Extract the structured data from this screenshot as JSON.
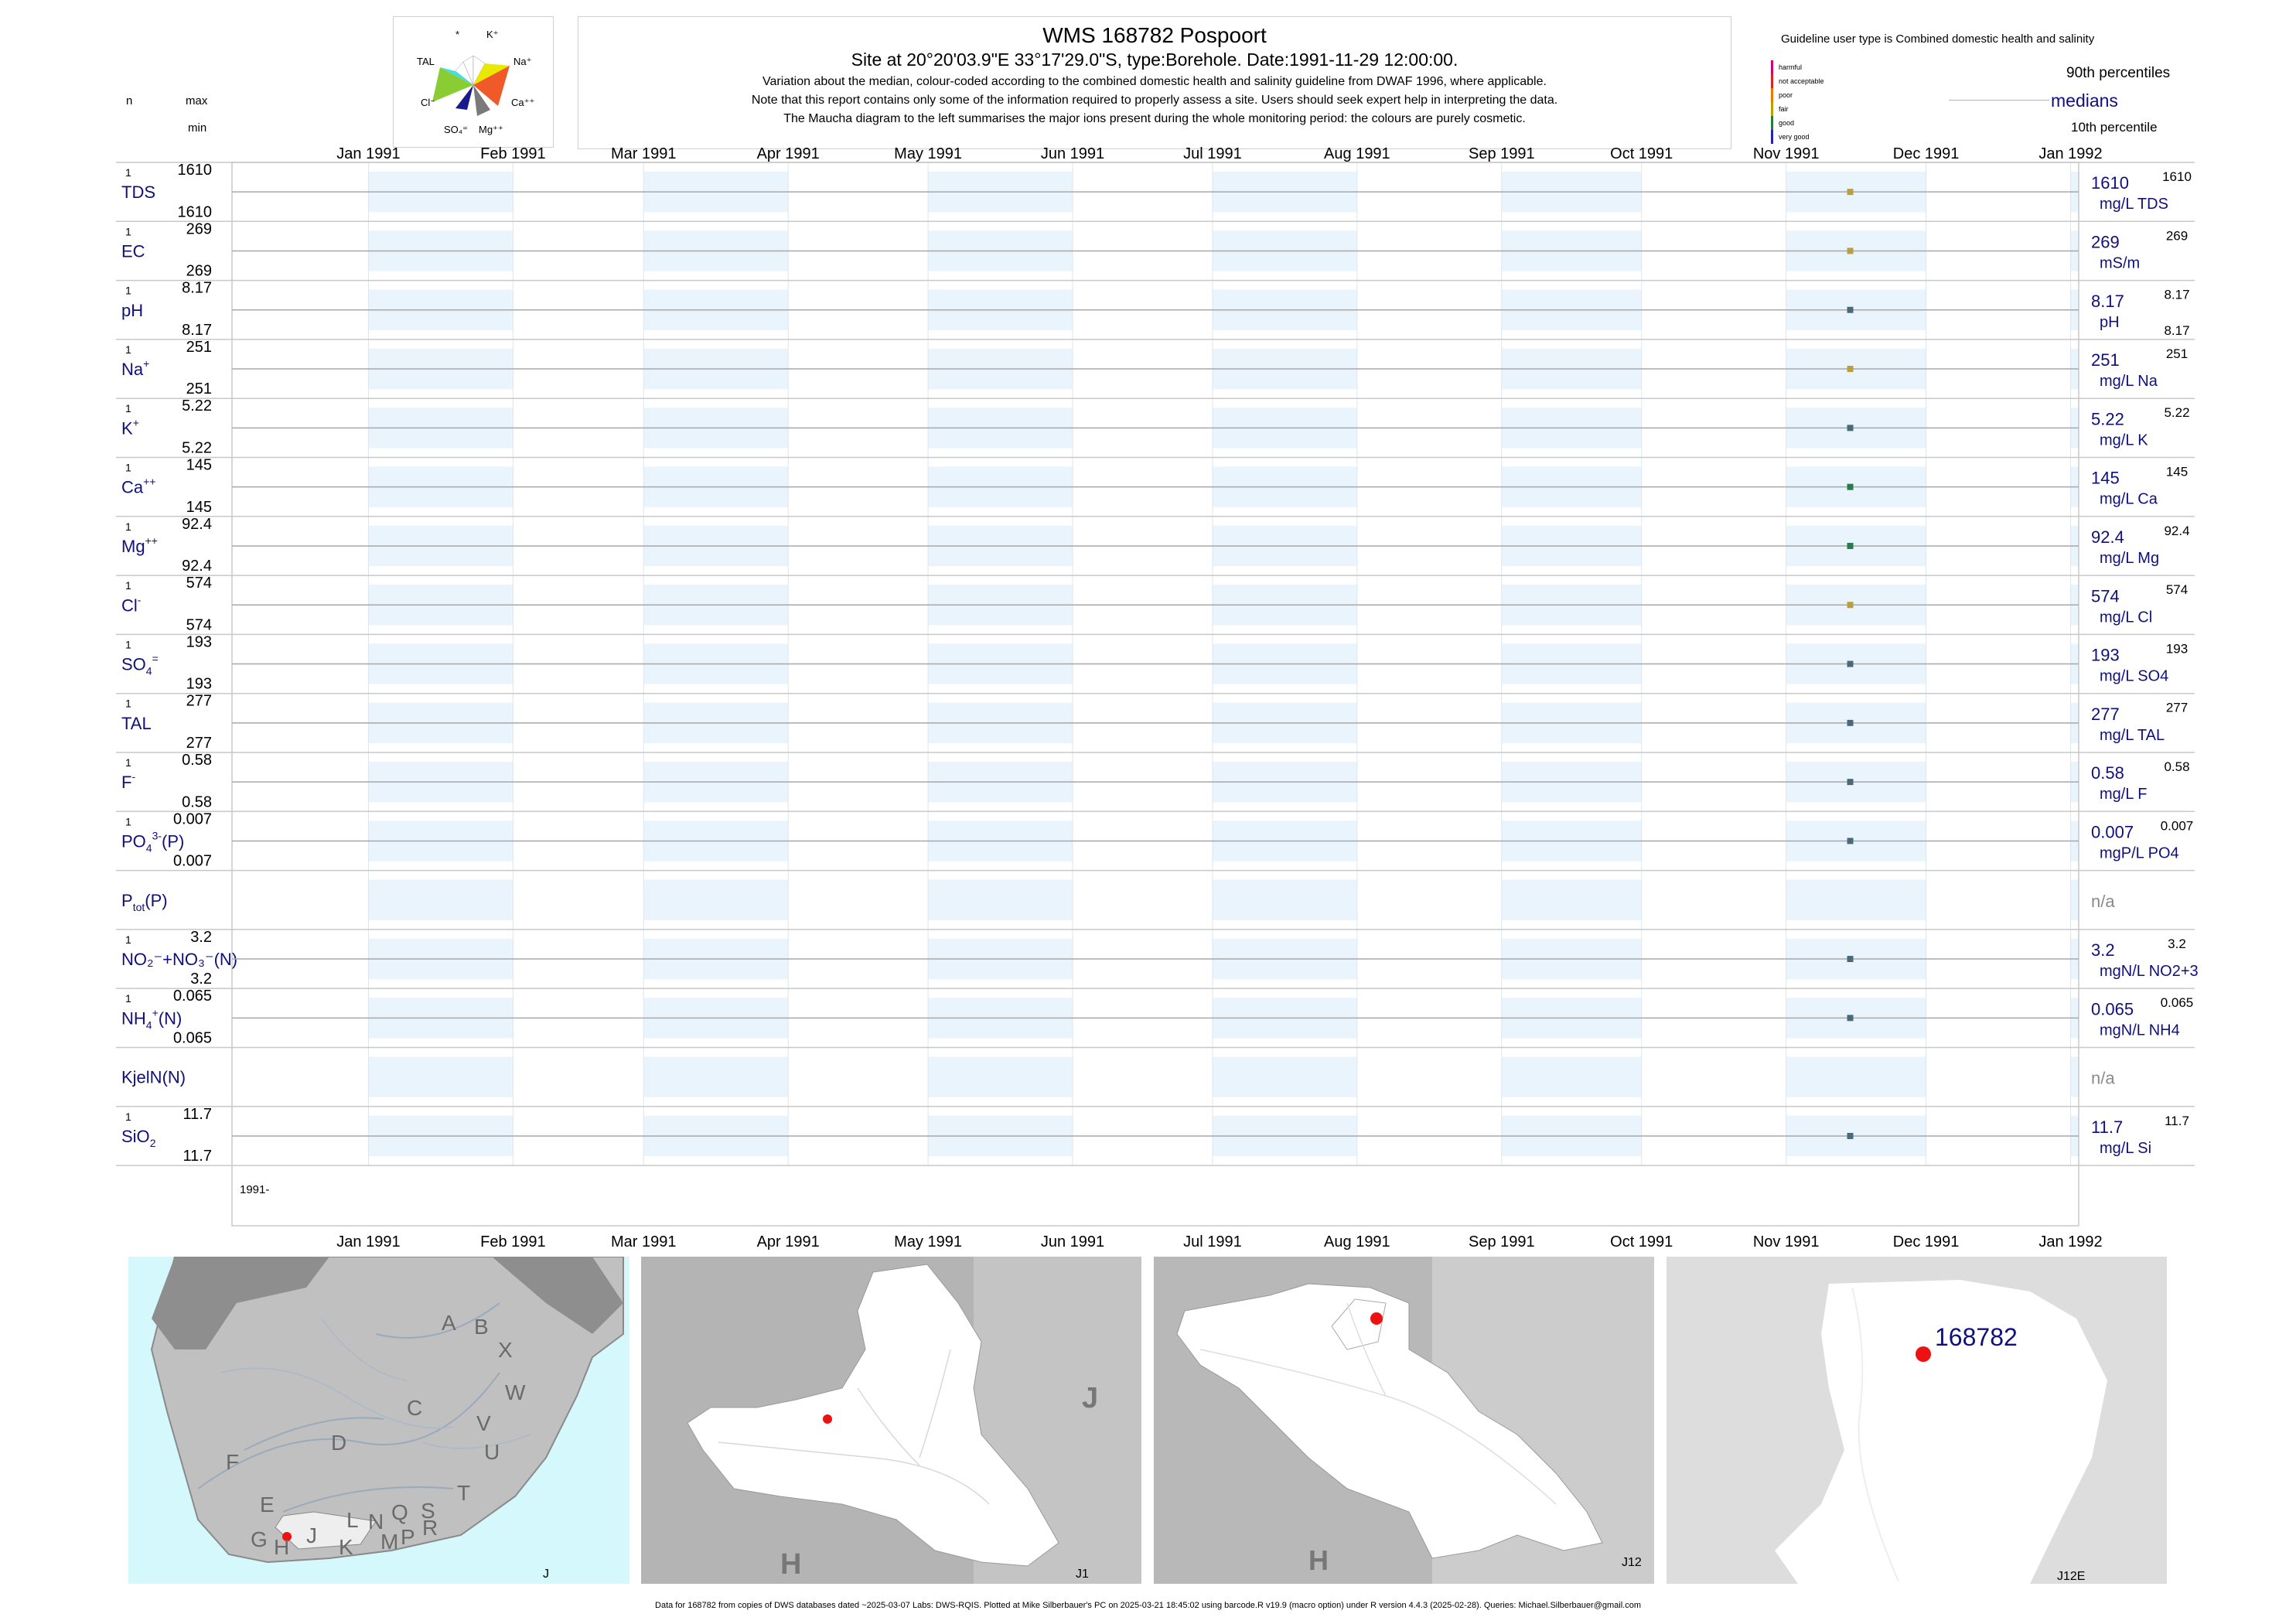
{
  "header": {
    "title": "WMS 168782  Pospoort",
    "subtitle": "Site at 20°20'03.9\"E 33°17'29.0\"S, type:Borehole. Date:1991-11-29 12:00:00.",
    "note1": "Variation about the median,  colour-coded according to the combined domestic health and salinity guideline from DWAF 1996, where applicable.",
    "note2": "Note that this report contains only some of the information required to properly assess a site. Users should seek expert help in interpreting the data.",
    "note3": "The Maucha diagram to the left summarises the major ions present during the whole monitoring period: the colours are purely cosmetic."
  },
  "maucha": {
    "labels": [
      "*",
      "K⁺",
      "Na⁺",
      "TAL",
      "Cl⁻",
      "Ca⁺⁺",
      "SO₄⁼",
      "Mg⁺⁺"
    ],
    "colors": [
      "#3fe0e6",
      "#e8e800",
      "#f05a28",
      "#8acd32",
      "#1a1a8c",
      "#7a7a7a"
    ]
  },
  "col_labels": {
    "n": "n",
    "max": "max",
    "min": "min"
  },
  "legend": {
    "title": "Guideline user type is Combined domestic health and salinity",
    "grades": [
      {
        "label": "harmful",
        "color": "#cc0077"
      },
      {
        "label": "not acceptable",
        "color": "#dd2222"
      },
      {
        "label": "poor",
        "color": "#ee7700"
      },
      {
        "label": "fair",
        "color": "#bba000"
      },
      {
        "label": "good",
        "color": "#2a7a3a"
      },
      {
        "label": "very good",
        "color": "#2222bb"
      }
    ],
    "p90": "90th percentiles",
    "medians": "medians",
    "p10": "10th percentile"
  },
  "chart_data": {
    "type": "scatter",
    "x_ticks": [
      "Jan 1991",
      "Feb 1991",
      "Mar 1991",
      "Apr 1991",
      "May 1991",
      "Jun 1991",
      "Jul 1991",
      "Aug 1991",
      "Sep 1991",
      "Oct 1991",
      "Nov 1991",
      "Dec 1991",
      "Jan 1992"
    ],
    "xlim": [
      "1990-12-17",
      "1992-01-17"
    ],
    "sample_date": "1991-11-29",
    "bottom_year_label": "1991-",
    "params": [
      {
        "name": "TDS",
        "sup": "",
        "sub": "",
        "n": "1",
        "max": "1610",
        "min": "1610",
        "median": "1610",
        "unit": "mg/L TDS",
        "r_max": "1610",
        "r_min": "",
        "color": "#b8a040"
      },
      {
        "name": "EC",
        "sup": "",
        "sub": "",
        "n": "1",
        "max": "269",
        "min": "269",
        "median": "269",
        "unit": "mS/m",
        "r_max": "269",
        "r_min": "",
        "color": "#b8a040"
      },
      {
        "name": "pH",
        "sup": "",
        "sub": "",
        "n": "1",
        "max": "8.17",
        "min": "8.17",
        "median": "8.17",
        "unit": "pH",
        "r_max": "8.17",
        "r_min": "8.17",
        "color": "#4a6a7a"
      },
      {
        "name": "Na",
        "sup": "+",
        "sub": "",
        "n": "1",
        "max": "251",
        "min": "251",
        "median": "251",
        "unit": "mg/L Na",
        "r_max": "251",
        "r_min": "",
        "color": "#b8a040"
      },
      {
        "name": "K",
        "sup": "+",
        "sub": "",
        "n": "1",
        "max": "5.22",
        "min": "5.22",
        "median": "5.22",
        "unit": "mg/L K",
        "r_max": "5.22",
        "r_min": "",
        "color": "#4a6a7a"
      },
      {
        "name": "Ca",
        "sup": "++",
        "sub": "",
        "n": "1",
        "max": "145",
        "min": "145",
        "median": "145",
        "unit": "mg/L Ca",
        "r_max": "145",
        "r_min": "",
        "color": "#2a7a4a"
      },
      {
        "name": "Mg",
        "sup": "++",
        "sub": "",
        "n": "1",
        "max": "92.4",
        "min": "92.4",
        "median": "92.4",
        "unit": "mg/L Mg",
        "r_max": "92.4",
        "r_min": "",
        "color": "#2a7a4a"
      },
      {
        "name": "Cl",
        "sup": "-",
        "sub": "",
        "n": "1",
        "max": "574",
        "min": "574",
        "median": "574",
        "unit": "mg/L Cl",
        "r_max": "574",
        "r_min": "",
        "color": "#b8a040"
      },
      {
        "name": "SO",
        "sup": "=",
        "sub": "4",
        "n": "1",
        "max": "193",
        "min": "193",
        "median": "193",
        "unit": "mg/L SO4",
        "r_max": "193",
        "r_min": "",
        "color": "#4a6a7a"
      },
      {
        "name": "TAL",
        "sup": "",
        "sub": "",
        "n": "1",
        "max": "277",
        "min": "277",
        "median": "277",
        "unit": "mg/L TAL",
        "r_max": "277",
        "r_min": "",
        "color": "#4a6a7a"
      },
      {
        "name": "F",
        "sup": "-",
        "sub": "",
        "n": "1",
        "max": "0.58",
        "min": "0.58",
        "median": "0.58",
        "unit": "mg/L F",
        "r_max": "0.58",
        "r_min": "",
        "color": "#4a6a7a"
      },
      {
        "name": "PO",
        "sup": "3-",
        "sub": "4",
        "suffix": "(P)",
        "n": "1",
        "max": "0.007",
        "min": "0.007",
        "median": "0.007",
        "unit": "mgP/L PO4",
        "r_max": "0.007",
        "r_min": "",
        "color": "#4a6a7a"
      },
      {
        "name": "P",
        "sup": "",
        "sub": "tot",
        "suffix": "(P)",
        "n": "",
        "max": "",
        "min": "",
        "median": "n/a",
        "unit": "",
        "r_max": "",
        "r_min": "",
        "color": ""
      },
      {
        "name": "NO₂⁻+NO₃⁻(N)",
        "sup": "",
        "sub": "",
        "n": "1",
        "max": "3.2",
        "min": "3.2",
        "median": "3.2",
        "unit": "mgN/L NO2+3",
        "r_max": "3.2",
        "r_min": "",
        "color": "#4a6a7a"
      },
      {
        "name": "NH",
        "sup": "+",
        "sub": "4",
        "suffix": "(N)",
        "n": "1",
        "max": "0.065",
        "min": "0.065",
        "median": "0.065",
        "unit": "mgN/L NH4",
        "r_max": "0.065",
        "r_min": "",
        "color": "#4a6a7a"
      },
      {
        "name": "KjelN(N)",
        "sup": "",
        "sub": "",
        "n": "",
        "max": "",
        "min": "",
        "median": "n/a",
        "unit": "",
        "r_max": "",
        "r_min": "",
        "color": ""
      },
      {
        "name": "SiO",
        "sup": "",
        "sub": "2",
        "n": "1",
        "max": "11.7",
        "min": "11.7",
        "median": "11.7",
        "unit": "mg/L Si",
        "r_max": "11.7",
        "r_min": "",
        "color": "#4a6a7a"
      }
    ]
  },
  "maps": [
    {
      "corner": "J",
      "labels": [
        "A",
        "B",
        "X",
        "W",
        "C",
        "D",
        "V",
        "U",
        "F",
        "T",
        "E",
        "G",
        "H",
        "J",
        "K",
        "L",
        "N",
        "Q",
        "S",
        "R",
        "M",
        "P"
      ]
    },
    {
      "corner": "J1",
      "labels": [
        "J",
        "H"
      ]
    },
    {
      "corner": "J12",
      "labels": [
        "H"
      ]
    },
    {
      "corner": "J12E",
      "site": "168782"
    }
  ],
  "footer": "Data for 168782 from copies of DWS databases dated ~2025-03-07 Labs: DWS-RQIS. Plotted at Mike Silberbauer's PC on 2025-03-21 18:45:02 using barcode.R v19.9 (macro option) under R version 4.4.3 (2025-02-28). Queries: Michael.Silberbauer@gmail.com"
}
